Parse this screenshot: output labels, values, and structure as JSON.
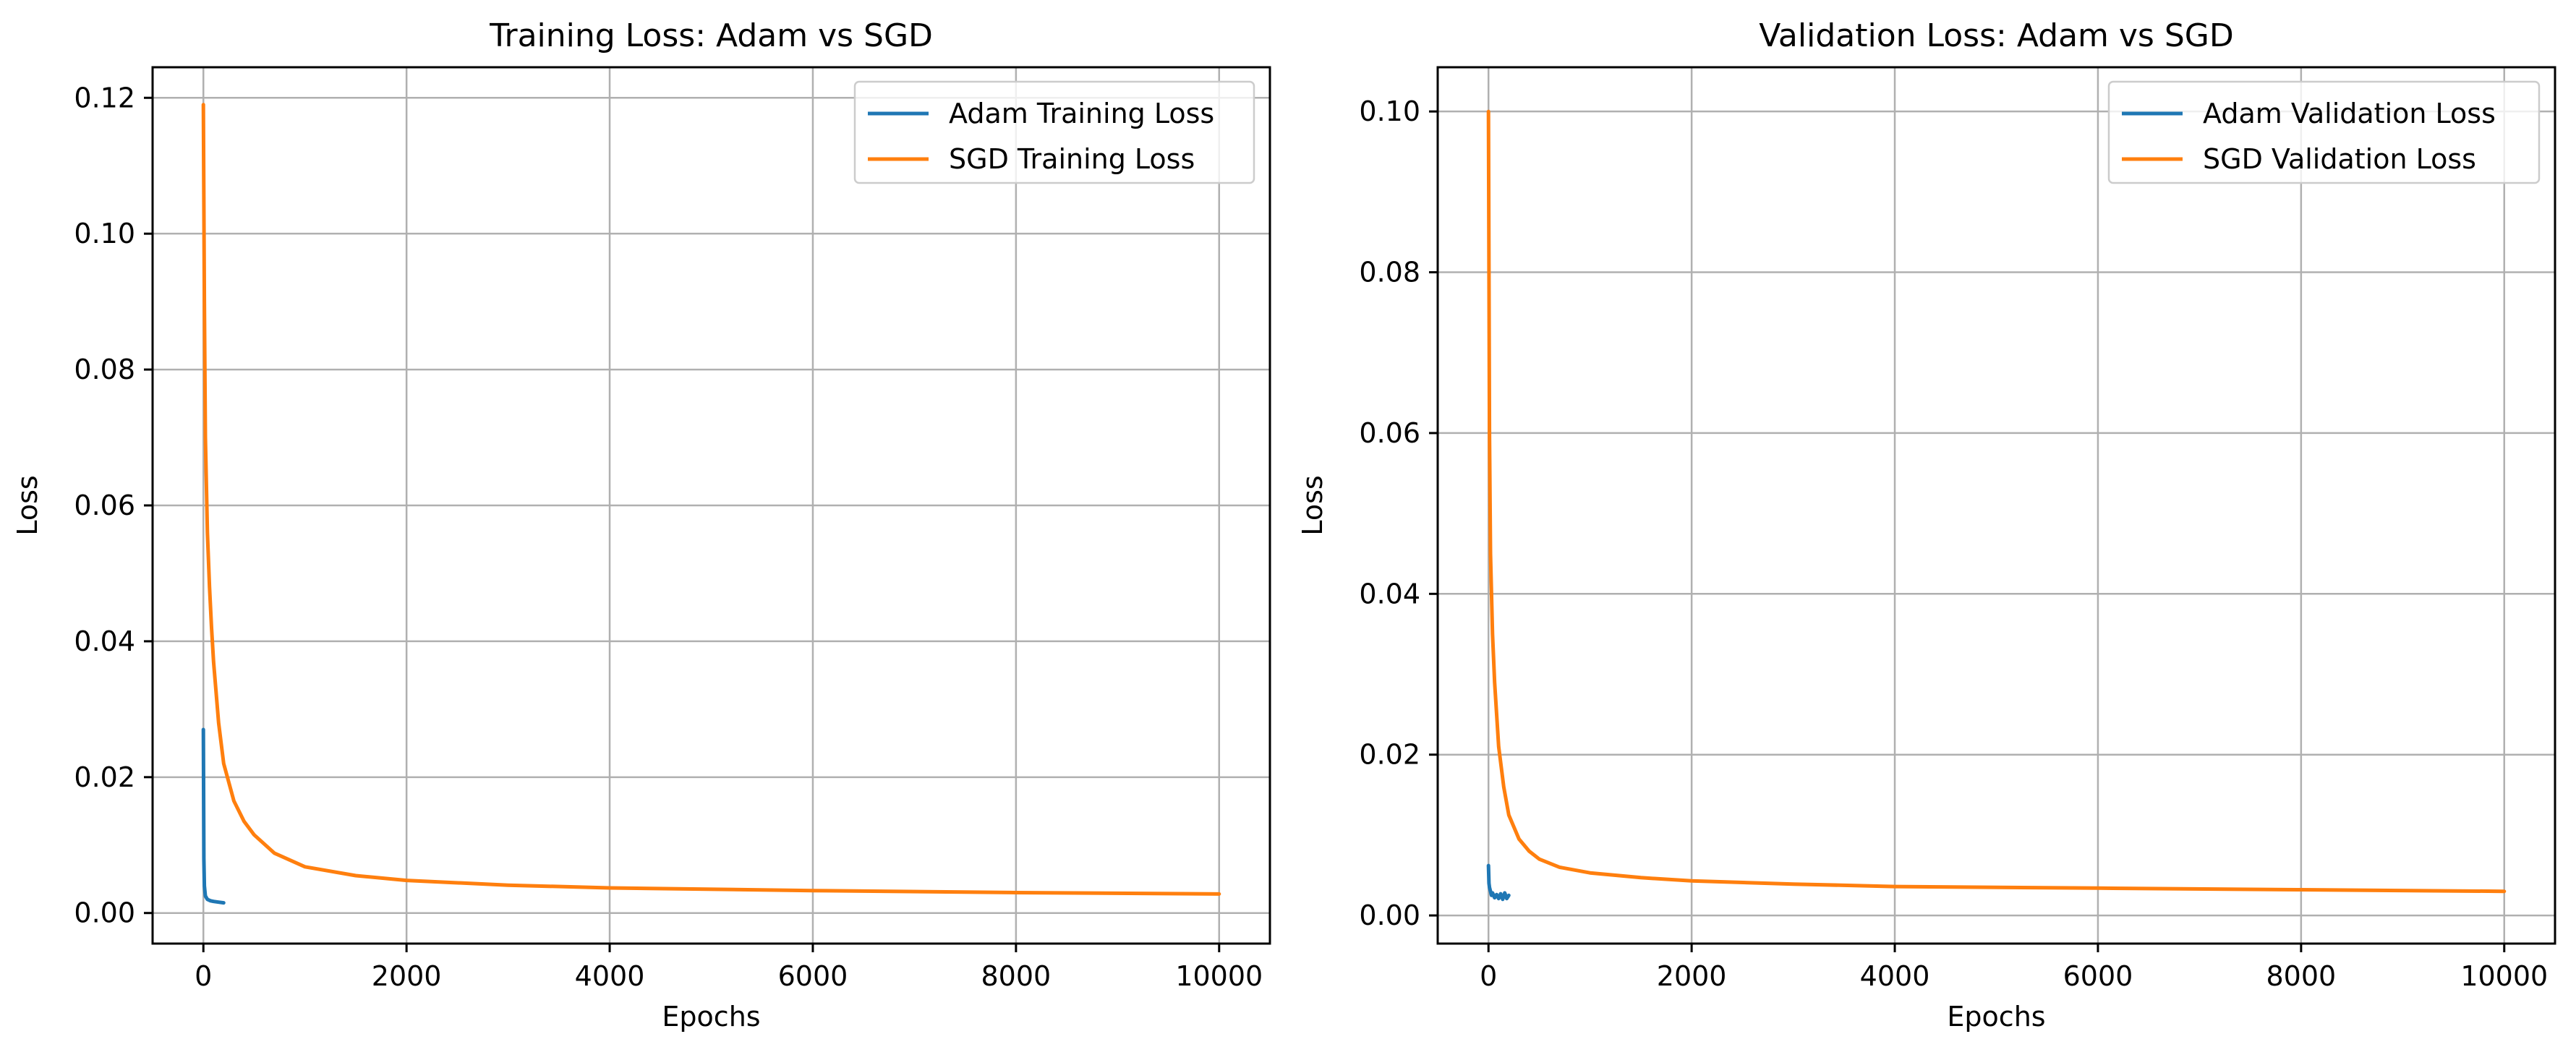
{
  "colors": {
    "adam": "#1f77b4",
    "sgd": "#ff7f0e",
    "grid": "#b0b0b0"
  },
  "chart_data": [
    {
      "type": "line",
      "title": "Training Loss: Adam vs SGD",
      "xlabel": "Epochs",
      "ylabel": "Loss",
      "xlim": [
        -500,
        10500
      ],
      "ylim": [
        -0.0045,
        0.1245
      ],
      "xticks": [
        0,
        2000,
        4000,
        6000,
        8000,
        10000
      ],
      "xtick_labels": [
        "0",
        "2000",
        "4000",
        "6000",
        "8000",
        "10000"
      ],
      "yticks": [
        0.0,
        0.02,
        0.04,
        0.06,
        0.08,
        0.1,
        0.12
      ],
      "ytick_labels": [
        "0.00",
        "0.02",
        "0.04",
        "0.06",
        "0.08",
        "0.10",
        "0.12"
      ],
      "grid": true,
      "legend": "upper-right",
      "series": [
        {
          "name": "Adam Training Loss",
          "color": "#1f77b4",
          "x": [
            0,
            5,
            10,
            20,
            40,
            70,
            100,
            150,
            200
          ],
          "y": [
            0.027,
            0.008,
            0.004,
            0.0025,
            0.002,
            0.0018,
            0.0017,
            0.0016,
            0.0015
          ]
        },
        {
          "name": "SGD Training Loss",
          "color": "#ff7f0e",
          "x": [
            0,
            10,
            20,
            40,
            60,
            80,
            100,
            150,
            200,
            300,
            400,
            500,
            700,
            1000,
            1500,
            2000,
            3000,
            4000,
            6000,
            8000,
            10000
          ],
          "y": [
            0.119,
            0.09,
            0.07,
            0.056,
            0.048,
            0.042,
            0.037,
            0.028,
            0.022,
            0.0165,
            0.0135,
            0.0115,
            0.0088,
            0.0068,
            0.0055,
            0.0048,
            0.0041,
            0.0037,
            0.0033,
            0.003,
            0.0028
          ]
        }
      ]
    },
    {
      "type": "line",
      "title": "Validation Loss: Adam vs SGD",
      "xlabel": "Epochs",
      "ylabel": "Loss",
      "xlim": [
        -500,
        10500
      ],
      "ylim": [
        -0.0035,
        0.1055
      ],
      "xticks": [
        0,
        2000,
        4000,
        6000,
        8000,
        10000
      ],
      "xtick_labels": [
        "0",
        "2000",
        "4000",
        "6000",
        "8000",
        "10000"
      ],
      "yticks": [
        0.0,
        0.02,
        0.04,
        0.06,
        0.08,
        0.1
      ],
      "ytick_labels": [
        "0.00",
        "0.02",
        "0.04",
        "0.06",
        "0.08",
        "0.10"
      ],
      "grid": true,
      "legend": "upper-right",
      "series": [
        {
          "name": "Adam Validation Loss",
          "color": "#1f77b4",
          "x": [
            0,
            5,
            10,
            20,
            30,
            40,
            60,
            80,
            100,
            120,
            140,
            160,
            180,
            200
          ],
          "y": [
            0.0062,
            0.004,
            0.0035,
            0.003,
            0.0025,
            0.0028,
            0.0022,
            0.0026,
            0.0021,
            0.0027,
            0.002,
            0.0028,
            0.0021,
            0.0025
          ]
        },
        {
          "name": "SGD Validation Loss",
          "color": "#ff7f0e",
          "x": [
            0,
            10,
            20,
            40,
            60,
            80,
            100,
            150,
            200,
            300,
            400,
            500,
            700,
            1000,
            1500,
            2000,
            3000,
            4000,
            6000,
            8000,
            10000
          ],
          "y": [
            0.1,
            0.06,
            0.045,
            0.035,
            0.029,
            0.025,
            0.021,
            0.016,
            0.0125,
            0.0095,
            0.008,
            0.007,
            0.006,
            0.0053,
            0.0047,
            0.0043,
            0.0039,
            0.0036,
            0.0034,
            0.0032,
            0.003
          ]
        }
      ]
    }
  ]
}
